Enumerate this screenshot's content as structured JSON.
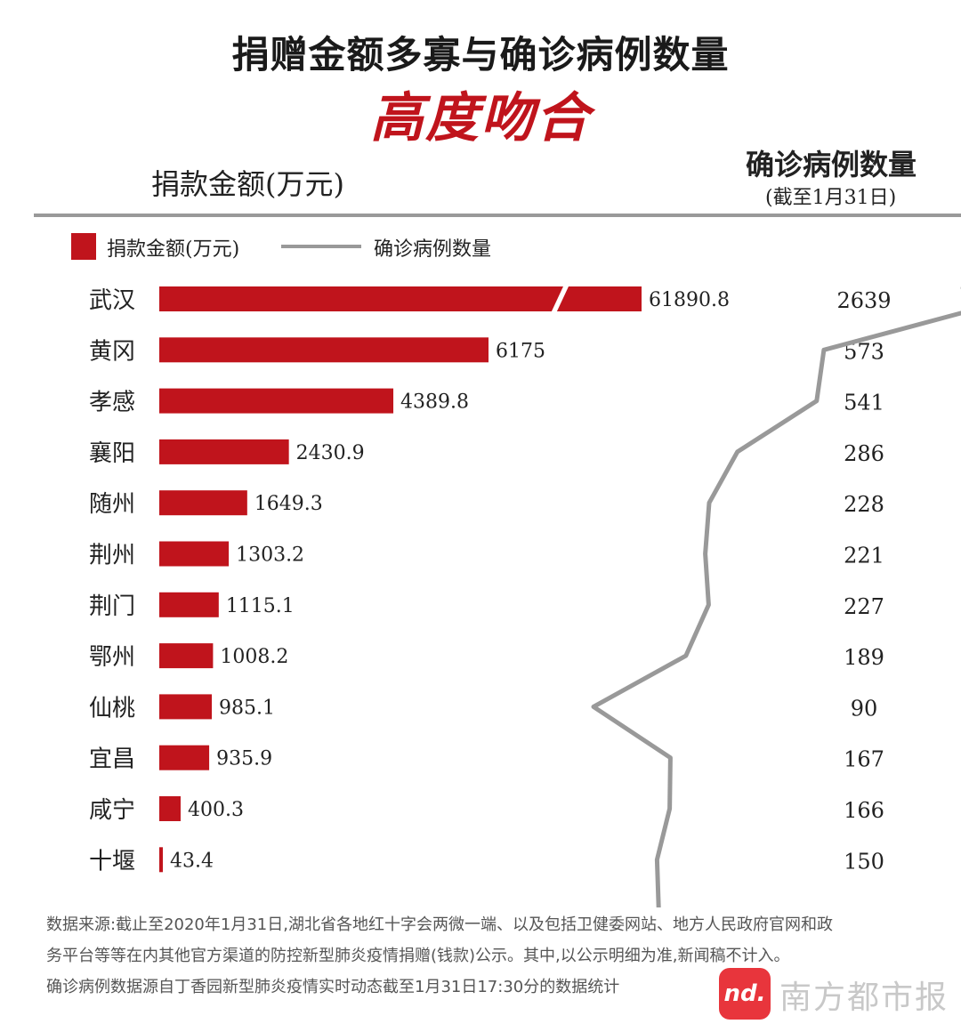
{
  "header": {
    "title": "捐赠金额多寡与确诊病例数量",
    "subtitle": "高度吻合",
    "left_axis_title": "捐款金额(万元)",
    "right_axis_title": "确诊病例数量",
    "right_axis_subtitle": "(截至1月31日)"
  },
  "legend": {
    "bar_label": "捐款金额(万元)",
    "line_label": "确诊病例数量"
  },
  "colors": {
    "bar": "#c0141c",
    "line": "#999999",
    "title_accent": "#c0141c"
  },
  "chart_data": {
    "type": "bar",
    "orientation": "horizontal",
    "categories": [
      "武汉",
      "黄冈",
      "孝感",
      "襄阳",
      "随州",
      "荆州",
      "荆门",
      "鄂州",
      "仙桃",
      "宜昌",
      "咸宁",
      "十堰"
    ],
    "series": [
      {
        "name": "捐款金额(万元)",
        "type": "bar",
        "values": [
          61890.8,
          6175,
          4389.8,
          2430.9,
          1649.3,
          1303.2,
          1115.1,
          1008.2,
          985.1,
          935.9,
          400.3,
          43.4
        ],
        "value_labels": [
          "61890.8",
          "6175",
          "4389.8",
          "2430.9",
          "1649.3",
          "1303.2",
          "1115.1",
          "1008.2",
          "985.1",
          "935.9",
          "400.3",
          "43.4"
        ],
        "axis_break": "武汉"
      },
      {
        "name": "确诊病例数量",
        "type": "line",
        "values": [
          2639,
          573,
          541,
          286,
          228,
          221,
          227,
          189,
          90,
          167,
          166,
          150
        ],
        "value_labels": [
          "2639",
          "573",
          "541",
          "286",
          "228",
          "221",
          "227",
          "189",
          "90",
          "167",
          "166",
          "150"
        ]
      }
    ],
    "legend_position": "top-left",
    "grid": false
  },
  "footer": {
    "lines": [
      "数据来源:截止至2020年1月31日,湖北省各地红十字会两微一端、以及包括卫健委网站、地方人民政府官网和政",
      "务平台等等在内其他官方渠道的防控新型肺炎疫情捐赠(钱款)公示。其中,以公示明细为准,新闻稿不计入。",
      "确诊病例数据源自丁香园新型肺炎疫情实时动态截至1月31日17:30分的数据统计"
    ],
    "logo_mark": "nd.",
    "logo_text": "南方都市报"
  }
}
